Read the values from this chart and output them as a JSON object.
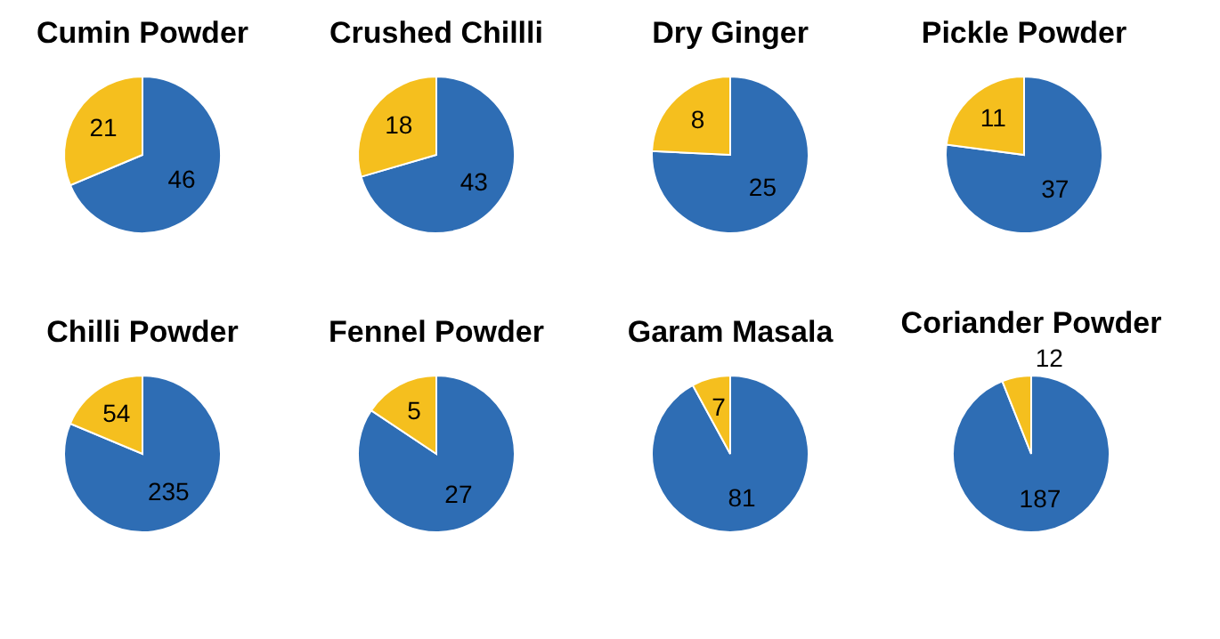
{
  "chart_data": [
    {
      "type": "pie",
      "title": "Cumin Powder",
      "categories": [
        null,
        null
      ],
      "values": [
        46,
        21
      ],
      "colors": [
        "#2e6db4",
        "#f5bf1e"
      ],
      "data_labels": true
    },
    {
      "type": "pie",
      "title": "Crushed Chillli",
      "categories": [
        null,
        null
      ],
      "values": [
        43,
        18
      ],
      "colors": [
        "#2e6db4",
        "#f5bf1e"
      ],
      "data_labels": true
    },
    {
      "type": "pie",
      "title": "Dry Ginger",
      "categories": [
        null,
        null
      ],
      "values": [
        25,
        8
      ],
      "colors": [
        "#2e6db4",
        "#f5bf1e"
      ],
      "data_labels": true
    },
    {
      "type": "pie",
      "title": "Pickle Powder",
      "categories": [
        null,
        null
      ],
      "values": [
        37,
        11
      ],
      "colors": [
        "#2e6db4",
        "#f5bf1e"
      ],
      "data_labels": true
    },
    {
      "type": "pie",
      "title": "Chilli Powder",
      "categories": [
        null,
        null
      ],
      "values": [
        235,
        54
      ],
      "colors": [
        "#2e6db4",
        "#f5bf1e"
      ],
      "data_labels": true
    },
    {
      "type": "pie",
      "title": "Fennel Powder",
      "categories": [
        null,
        null
      ],
      "values": [
        27,
        5
      ],
      "colors": [
        "#2e6db4",
        "#f5bf1e"
      ],
      "data_labels": true
    },
    {
      "type": "pie",
      "title": "Garam Masala",
      "categories": [
        null,
        null
      ],
      "values": [
        81,
        7
      ],
      "colors": [
        "#2e6db4",
        "#f5bf1e"
      ],
      "data_labels": true
    },
    {
      "type": "pie",
      "title": "Coriander Powder",
      "categories": [
        null,
        null
      ],
      "values": [
        187,
        12
      ],
      "colors": [
        "#2e6db4",
        "#f5bf1e"
      ],
      "data_labels": true
    }
  ]
}
